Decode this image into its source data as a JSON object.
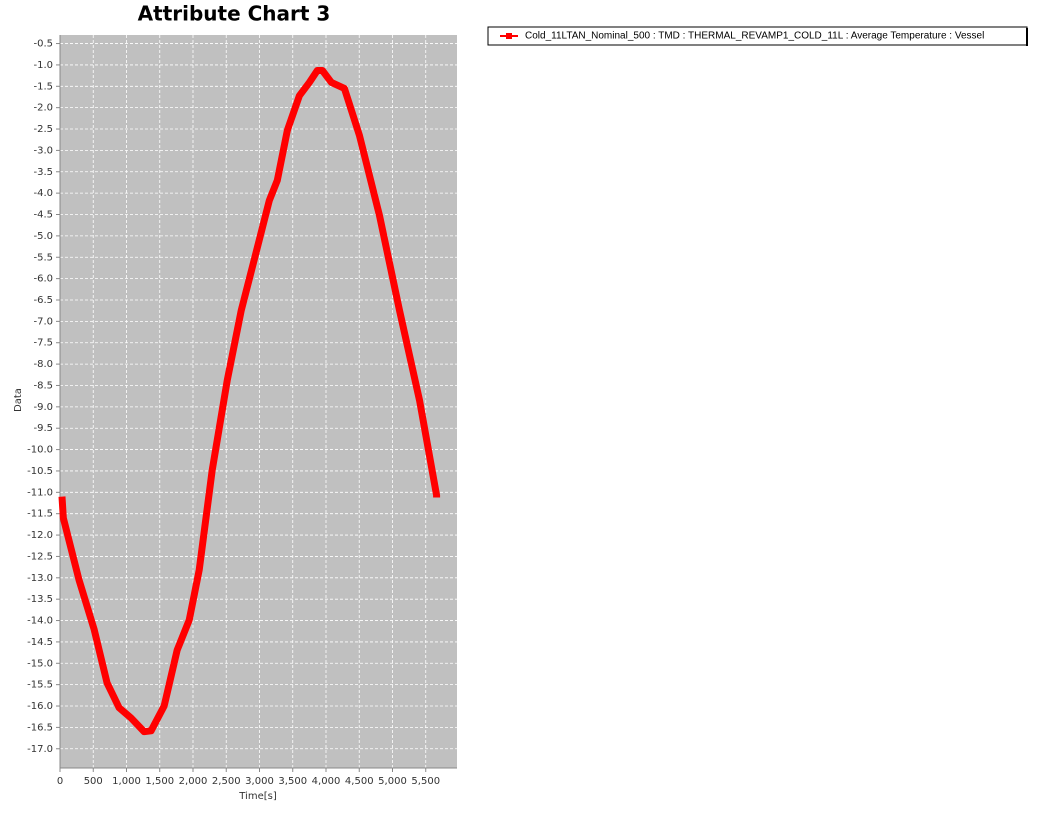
{
  "chart_data": {
    "type": "line",
    "title": "Attribute Chart 3",
    "x_label": "Time[s]",
    "y_label": "Data",
    "xlim": [
      0,
      5970
    ],
    "ylim": [
      -17.45,
      -0.3
    ],
    "xticks": [
      0,
      500,
      {
        "value": 1000,
        "label": "1,000"
      },
      {
        "value": 1500,
        "label": "1,500"
      },
      {
        "value": 2000,
        "label": "2,000"
      },
      {
        "value": 2500,
        "label": "2,500"
      },
      {
        "value": 3000,
        "label": "3,000"
      },
      {
        "value": 3500,
        "label": "3,500"
      },
      {
        "value": 4000,
        "label": "4,000"
      },
      {
        "value": 4500,
        "label": "4,500"
      },
      {
        "value": 5000,
        "label": "5,000"
      },
      {
        "value": 5500,
        "label": "5,500"
      }
    ],
    "yticks": [
      -0.5,
      {
        "value": -1,
        "label": "-1.0"
      },
      -1.5,
      {
        "value": -2,
        "label": "-2.0"
      },
      -2.5,
      {
        "value": -3,
        "label": "-3.0"
      },
      -3.5,
      {
        "value": -4,
        "label": "-4.0"
      },
      -4.5,
      {
        "value": -5,
        "label": "-5.0"
      },
      -5.5,
      {
        "value": -6,
        "label": "-6.0"
      },
      -6.5,
      {
        "value": -7,
        "label": "-7.0"
      },
      -7.5,
      {
        "value": -8,
        "label": "-8.0"
      },
      -8.5,
      {
        "value": -9,
        "label": "-9.0"
      },
      -9.5,
      {
        "value": -10,
        "label": "-10.0"
      },
      -10.5,
      {
        "value": -11,
        "label": "-11.0"
      },
      -11.5,
      {
        "value": -12,
        "label": "-12.0"
      },
      -12.5,
      {
        "value": -13,
        "label": "-13.0"
      },
      -13.5,
      {
        "value": -14,
        "label": "-14.0"
      },
      -14.5,
      {
        "value": -15,
        "label": "-15.0"
      },
      -15.5,
      {
        "value": -16,
        "label": "-16.0"
      },
      -16.5,
      {
        "value": -17,
        "label": "-17.0"
      }
    ],
    "grid": true,
    "series": [
      {
        "name": "Cold_11LTAN_Nominal_500 : TMD : THERMAL_REVAMP1_COLD_11L : Average Temperature : Vessel",
        "color": "#ff0000",
        "x": [
          30,
          50,
          286,
          512,
          708,
          889,
          1069,
          1265,
          1370,
          1566,
          1762,
          1943,
          2093,
          2289,
          2515,
          2726,
          2937,
          3148,
          3268,
          3419,
          3600,
          3750,
          3870,
          3946,
          4081,
          4277,
          4503,
          4804,
          5105,
          5407,
          5663,
          5663
        ],
        "values": [
          -11.1,
          -11.6,
          -13.05,
          -14.2,
          -15.46,
          -16.04,
          -16.28,
          -16.6,
          -16.58,
          -16.0,
          -14.69,
          -13.99,
          -12.82,
          -10.48,
          -8.38,
          -6.74,
          -5.46,
          -4.17,
          -3.7,
          -2.53,
          -1.72,
          -1.41,
          -1.13,
          -1.13,
          -1.41,
          -1.55,
          -2.65,
          -4.52,
          -6.74,
          -8.85,
          -11.07,
          -11.12
        ]
      }
    ]
  }
}
